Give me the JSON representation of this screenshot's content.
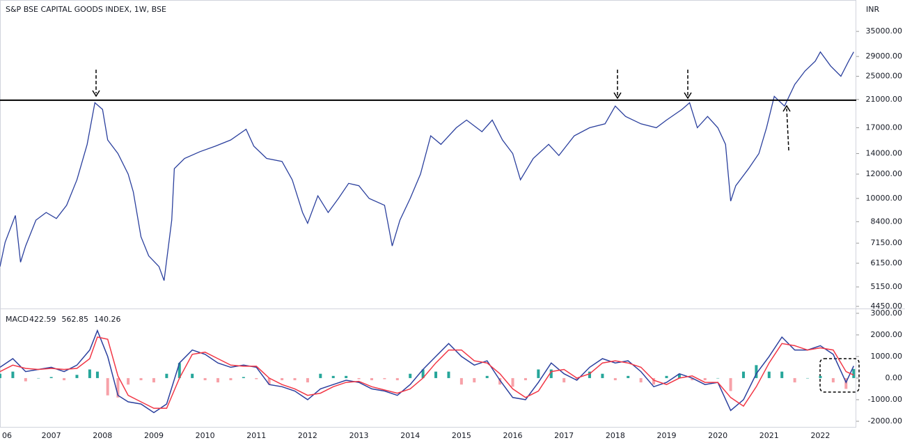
{
  "chart_data": {
    "type": "price-macd",
    "title": "S&P BSE CAPITAL GOODS INDEX, 1W, BSE",
    "currency": "INR",
    "price": {
      "type": "line",
      "color": "#2a3f9d",
      "log_scale": true,
      "x": [
        2006.0,
        2006.1,
        2006.3,
        2006.4,
        2006.5,
        2006.7,
        2006.9,
        2007.1,
        2007.3,
        2007.5,
        2007.7,
        2007.85,
        2008.0,
        2008.1,
        2008.3,
        2008.5,
        2008.6,
        2008.75,
        2008.9,
        2009.1,
        2009.2,
        2009.35,
        2009.4,
        2009.6,
        2009.9,
        2010.2,
        2010.5,
        2010.8,
        2010.95,
        2011.2,
        2011.5,
        2011.7,
        2011.9,
        2012.0,
        2012.2,
        2012.4,
        2012.6,
        2012.8,
        2013.0,
        2013.2,
        2013.5,
        2013.65,
        2013.8,
        2014.0,
        2014.2,
        2014.4,
        2014.6,
        2014.9,
        2015.1,
        2015.4,
        2015.6,
        2015.8,
        2016.0,
        2016.15,
        2016.4,
        2016.7,
        2016.9,
        2017.2,
        2017.5,
        2017.8,
        2018.0,
        2018.2,
        2018.5,
        2018.8,
        2019.0,
        2019.3,
        2019.45,
        2019.6,
        2019.8,
        2020.0,
        2020.15,
        2020.25,
        2020.35,
        2020.6,
        2020.8,
        2020.95,
        2021.1,
        2021.3,
        2021.5,
        2021.7,
        2021.9,
        2022.0,
        2022.2,
        2022.4,
        2022.55,
        2022.65
      ],
      "values": [
        6000,
        7200,
        8800,
        6200,
        7000,
        8500,
        9000,
        8600,
        9500,
        11500,
        15000,
        20500,
        19500,
        15500,
        14000,
        12000,
        10500,
        7500,
        6500,
        6000,
        5400,
        8500,
        12500,
        13500,
        14200,
        14800,
        15500,
        16800,
        14800,
        13500,
        13200,
        11500,
        9000,
        8300,
        10200,
        9000,
        10000,
        11200,
        11000,
        10000,
        9500,
        7000,
        8500,
        10000,
        12000,
        16000,
        15000,
        17000,
        18000,
        16500,
        18000,
        15500,
        14000,
        11500,
        13500,
        15000,
        13800,
        16000,
        17000,
        17500,
        20000,
        18500,
        17500,
        17000,
        18000,
        19500,
        20500,
        17000,
        18500,
        17000,
        15000,
        9800,
        11000,
        12500,
        14000,
        17000,
        21500,
        20000,
        23500,
        26000,
        28000,
        30000,
        27000,
        25000,
        28000,
        30000
      ],
      "resistance_level": 20900,
      "ylim": [
        4380,
        44300
      ],
      "yticks": [
        {
          "value": 35000,
          "label": "35000.00"
        },
        {
          "value": 29000,
          "label": "29000.00"
        },
        {
          "value": 25000,
          "label": "25000.00"
        },
        {
          "value": 21000,
          "label": "21000.00"
        },
        {
          "value": 17000,
          "label": "17000.00"
        },
        {
          "value": 14000,
          "label": "14000.00"
        },
        {
          "value": 12000,
          "label": "12000.00"
        },
        {
          "value": 10000,
          "label": "10000.00"
        },
        {
          "value": 8400,
          "label": "8400.00"
        },
        {
          "value": 7150,
          "label": "7150.00"
        },
        {
          "value": 6150,
          "label": "6150.00"
        },
        {
          "value": 5150,
          "label": "5150.00"
        },
        {
          "value": 4450,
          "label": "4450.00"
        }
      ]
    },
    "macd": {
      "title": "MACD",
      "readout": [
        {
          "value": 422.59,
          "color": "#26a69a"
        },
        {
          "value": 562.85,
          "color": "#2a3f9d"
        },
        {
          "value": 140.26,
          "color": "#f23645"
        }
      ],
      "x": [
        2006.0,
        2006.25,
        2006.5,
        2006.75,
        2007.0,
        2007.25,
        2007.5,
        2007.75,
        2007.9,
        2008.1,
        2008.3,
        2008.5,
        2008.75,
        2009.0,
        2009.25,
        2009.5,
        2009.75,
        2010.0,
        2010.25,
        2010.5,
        2010.75,
        2011.0,
        2011.25,
        2011.5,
        2011.75,
        2012.0,
        2012.25,
        2012.5,
        2012.75,
        2013.0,
        2013.25,
        2013.5,
        2013.75,
        2014.0,
        2014.25,
        2014.5,
        2014.75,
        2015.0,
        2015.25,
        2015.5,
        2015.75,
        2016.0,
        2016.25,
        2016.5,
        2016.75,
        2017.0,
        2017.25,
        2017.5,
        2017.75,
        2018.0,
        2018.25,
        2018.5,
        2018.75,
        2019.0,
        2019.25,
        2019.5,
        2019.75,
        2020.0,
        2020.25,
        2020.5,
        2020.75,
        2021.0,
        2021.25,
        2021.5,
        2021.75,
        2022.0,
        2022.25,
        2022.5,
        2022.65
      ],
      "histogram": {
        "colors": [
          "#26a69a",
          "#f7a1a8"
        ],
        "values": [
          200,
          300,
          -150,
          0,
          50,
          -100,
          150,
          400,
          300,
          -800,
          -900,
          -300,
          -100,
          -200,
          200,
          700,
          200,
          -100,
          -200,
          -100,
          50,
          -50,
          -300,
          -100,
          -100,
          -200,
          200,
          100,
          100,
          -50,
          -100,
          -50,
          -100,
          200,
          400,
          300,
          300,
          -300,
          -200,
          100,
          -300,
          -400,
          -100,
          400,
          400,
          -200,
          -100,
          300,
          200,
          -100,
          100,
          -200,
          -300,
          100,
          200,
          -100,
          -100,
          0,
          -600,
          300,
          600,
          300,
          300,
          -200,
          0,
          100,
          -200,
          -500,
          422.59
        ]
      },
      "series": [
        {
          "color": "#2a3f9d",
          "values": [
            500,
            900,
            300,
            400,
            500,
            300,
            600,
            1300,
            2200,
            1000,
            -800,
            -1100,
            -1200,
            -1600,
            -1200,
            700,
            1300,
            1100,
            700,
            500,
            600,
            500,
            -300,
            -400,
            -600,
            -1000,
            -500,
            -300,
            -100,
            -200,
            -500,
            -600,
            -800,
            -300,
            400,
            1000,
            1600,
            1000,
            600,
            800,
            -100,
            -900,
            -1000,
            -200,
            700,
            200,
            -100,
            500,
            900,
            700,
            800,
            300,
            -400,
            -200,
            200,
            0,
            -300,
            -200,
            -1500,
            -1000,
            200,
            1000,
            1900,
            1300,
            1300,
            1500,
            1100,
            -200,
            562.85
          ]
        },
        {
          "color": "#f23645",
          "values": [
            300,
            600,
            450,
            400,
            450,
            400,
            450,
            900,
            1900,
            1800,
            100,
            -800,
            -1100,
            -1400,
            -1400,
            0,
            1100,
            1200,
            900,
            600,
            550,
            550,
            0,
            -300,
            -500,
            -800,
            -700,
            -400,
            -200,
            -150,
            -400,
            -550,
            -700,
            -500,
            0,
            700,
            1300,
            1300,
            800,
            700,
            200,
            -500,
            -900,
            -600,
            300,
            400,
            0,
            200,
            700,
            800,
            700,
            500,
            -100,
            -300,
            0,
            100,
            -200,
            -200,
            -900,
            -1300,
            -400,
            700,
            1600,
            1500,
            1300,
            1400,
            1300,
            300,
            140.26
          ]
        }
      ],
      "ylim": [
        -2260,
        3190
      ],
      "yticks": [
        {
          "value": 3000,
          "label": "3000.00"
        },
        {
          "value": 2000,
          "label": "2000.00"
        },
        {
          "value": 1000,
          "label": "1000.00"
        },
        {
          "value": 0,
          "label": "0.00"
        },
        {
          "value": -1000,
          "label": "-1000.00"
        },
        {
          "value": -2000,
          "label": "-2000.00"
        }
      ]
    },
    "xlim": [
      2006.0,
      2022.7
    ],
    "xticks": [
      {
        "value": 2006,
        "label": "06"
      },
      2007,
      2008,
      2009,
      2010,
      2011,
      2012,
      2013,
      2014,
      2015,
      2016,
      2017,
      2018,
      2019,
      2020,
      2021,
      2022
    ]
  }
}
